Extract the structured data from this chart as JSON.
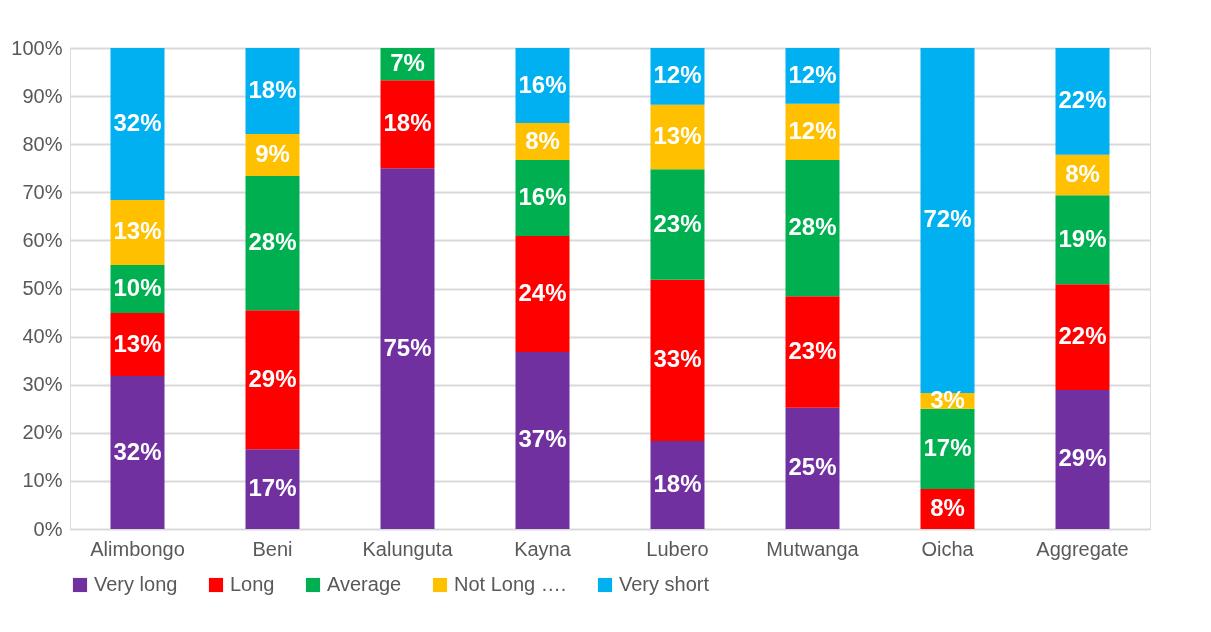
{
  "chart_data": {
    "type": "bar",
    "stacked": true,
    "categories": [
      "Alimbongo",
      "Beni",
      "Kalunguta",
      "Kayna",
      "Lubero",
      "Mutwanga",
      "Oicha",
      "Aggregate"
    ],
    "series": [
      {
        "name": "Very long",
        "color": "#7030a0",
        "values": [
          31.8,
          16.6,
          75.0,
          36.8,
          18.3,
          25.2,
          0,
          28.9
        ],
        "value_labels": [
          "32%",
          "17%",
          "75%",
          "37%",
          "18%",
          "25%",
          null,
          "29%"
        ]
      },
      {
        "name": "Long",
        "color": "#ff0000",
        "values": [
          13.1,
          28.9,
          18.3,
          24.1,
          33.5,
          23.2,
          8.3,
          22.0
        ],
        "value_labels": [
          "13%",
          "29%",
          "18%",
          "24%",
          "33%",
          "23%",
          "8%",
          "22%"
        ]
      },
      {
        "name": "Average",
        "color": "#00b050",
        "values": [
          10.0,
          27.9,
          6.7,
          15.8,
          23.0,
          28.3,
          16.7,
          18.5
        ],
        "value_labels": [
          "10%",
          "28%",
          "7%",
          "16%",
          "23%",
          "28%",
          "17%",
          "19%"
        ]
      },
      {
        "name": "Not Long ….",
        "color": "#ffc000",
        "values": [
          13.5,
          8.7,
          0,
          7.7,
          13.4,
          11.7,
          3.3,
          8.4
        ],
        "value_labels": [
          "13%",
          "9%",
          null,
          "8%",
          "13%",
          "12%",
          "3%",
          "8%"
        ]
      },
      {
        "name": "Very short",
        "color": "#00b0f0",
        "values": [
          31.6,
          17.9,
          0,
          15.6,
          11.8,
          11.6,
          71.7,
          22.2
        ],
        "value_labels": [
          "32%",
          "18%",
          null,
          "16%",
          "12%",
          "12%",
          "72%",
          "22%"
        ]
      }
    ],
    "ylim": [
      0,
      100
    ],
    "yticks": [
      {
        "value": 0,
        "label": "0%"
      },
      {
        "value": 10,
        "label": "10%"
      },
      {
        "value": 20,
        "label": "20%"
      },
      {
        "value": 30,
        "label": "30%"
      },
      {
        "value": 40,
        "label": "40%"
      },
      {
        "value": 50,
        "label": "50%"
      },
      {
        "value": 60,
        "label": "60%"
      },
      {
        "value": 70,
        "label": "70%"
      },
      {
        "value": 80,
        "label": "80%"
      },
      {
        "value": 90,
        "label": "90%"
      },
      {
        "value": 100,
        "label": "100%"
      }
    ],
    "grid": "y",
    "legend": "bottom"
  }
}
